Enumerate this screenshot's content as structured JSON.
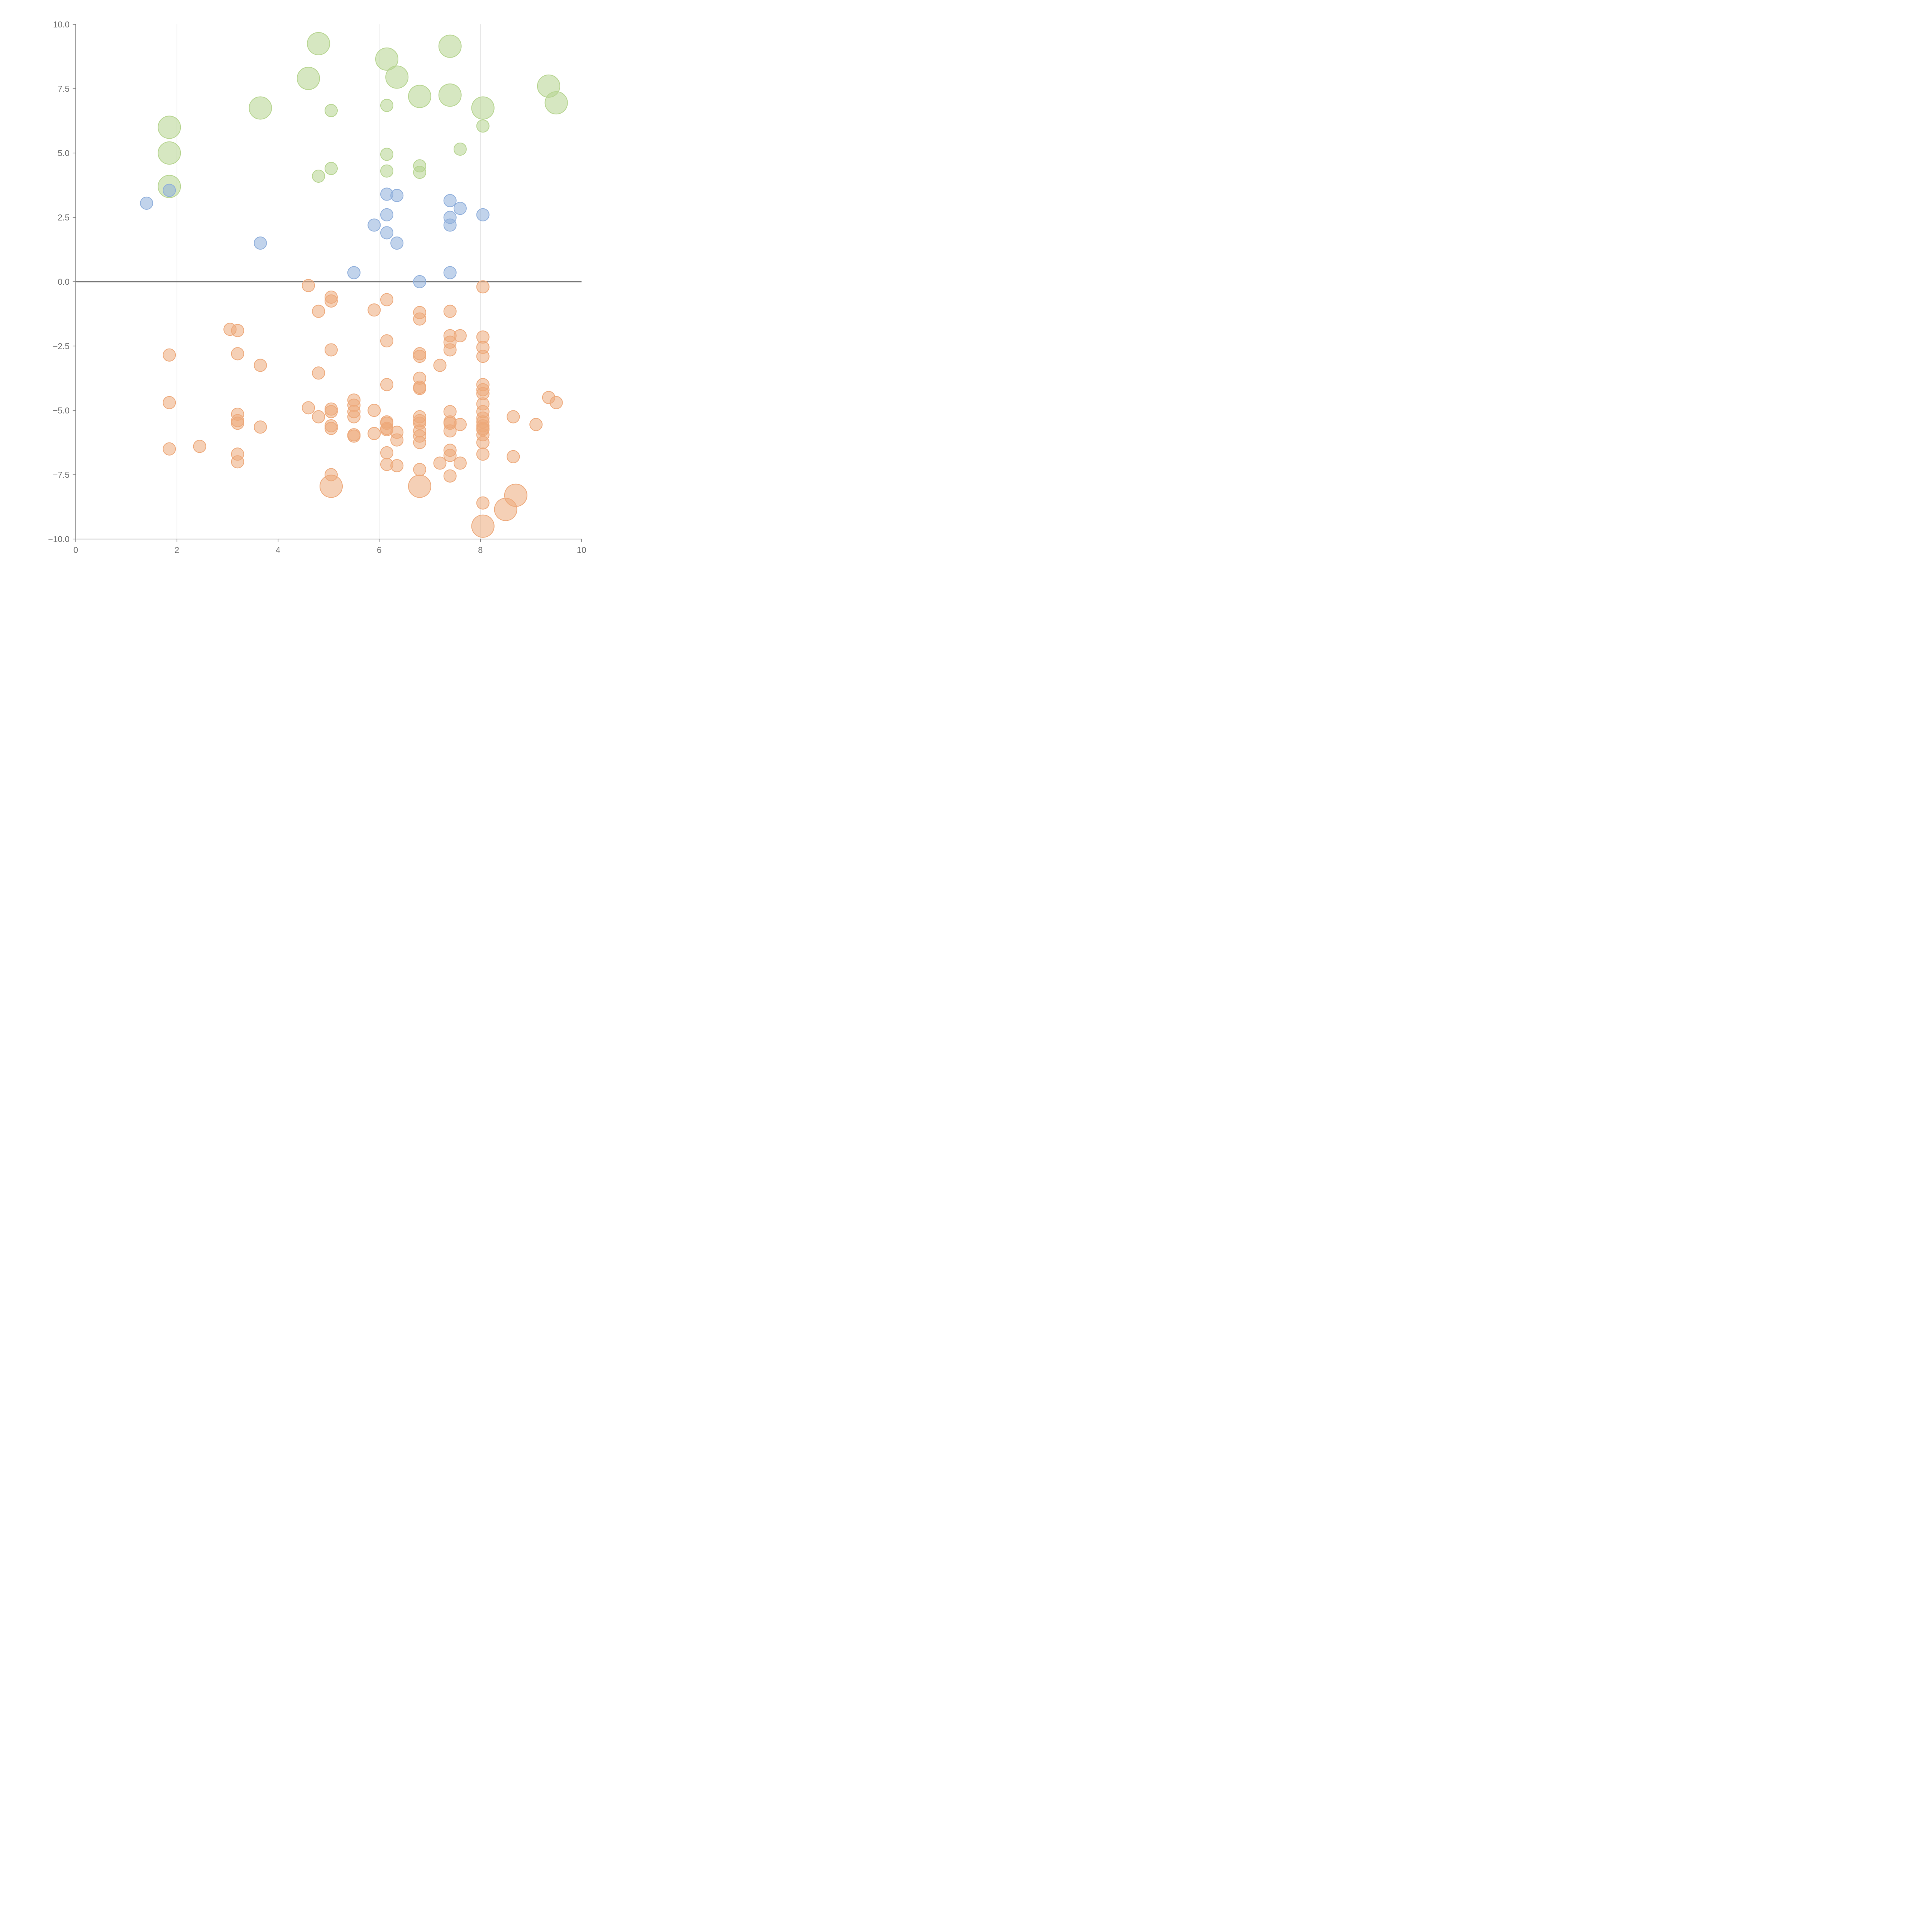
{
  "chart_data": {
    "type": "scatter",
    "title": "",
    "xlabel": "",
    "ylabel": "",
    "xlim": [
      0,
      10
    ],
    "ylim": [
      -10,
      10
    ],
    "grid": "vertical lines at x ticks",
    "legend": "none",
    "x_ticks": [
      "0",
      "2",
      "4",
      "6",
      "8",
      "10"
    ],
    "y_ticks": [
      "10.0",
      "7.5",
      "5.0",
      "2.5",
      "0.0",
      "−2.5",
      "−5.0",
      "−7.5",
      "−10.0"
    ],
    "x_tick_values": [
      0,
      2,
      4,
      6,
      8,
      10
    ],
    "y_tick_values": [
      10,
      7.5,
      5,
      2.5,
      0,
      -2.5,
      -5,
      -7.5,
      -10
    ],
    "zero_line_y": 0,
    "colors": {
      "green": "#b5d48e",
      "blue": "#8eaedb",
      "orange": "#eda97a",
      "axis": "#777777",
      "grid": "#dddddd"
    },
    "series": [
      {
        "color": "#b5d48e",
        "points": [
          {
            "x": 4.8,
            "y": 9.25,
            "s": "l"
          },
          {
            "x": 7.4,
            "y": 9.15,
            "s": "l"
          },
          {
            "x": 6.15,
            "y": 8.65,
            "s": "l"
          },
          {
            "x": 6.35,
            "y": 7.95,
            "s": "l"
          },
          {
            "x": 4.6,
            "y": 7.9,
            "s": "l"
          },
          {
            "x": 9.35,
            "y": 7.6,
            "s": "l"
          },
          {
            "x": 7.4,
            "y": 7.25,
            "s": "l"
          },
          {
            "x": 6.8,
            "y": 7.2,
            "s": "l"
          },
          {
            "x": 9.5,
            "y": 6.95,
            "s": "l"
          },
          {
            "x": 3.65,
            "y": 6.75,
            "s": "l"
          },
          {
            "x": 8.05,
            "y": 6.75,
            "s": "l"
          },
          {
            "x": 1.85,
            "y": 6.0,
            "s": "l"
          },
          {
            "x": 1.85,
            "y": 5.0,
            "s": "l"
          },
          {
            "x": 1.85,
            "y": 3.7,
            "s": "l"
          },
          {
            "x": 6.15,
            "y": 6.85,
            "s": "s"
          },
          {
            "x": 5.05,
            "y": 6.65,
            "s": "s"
          },
          {
            "x": 8.05,
            "y": 6.05,
            "s": "s"
          },
          {
            "x": 7.6,
            "y": 5.15,
            "s": "s"
          },
          {
            "x": 6.15,
            "y": 4.95,
            "s": "s"
          },
          {
            "x": 6.8,
            "y": 4.5,
            "s": "s"
          },
          {
            "x": 5.05,
            "y": 4.4,
            "s": "s"
          },
          {
            "x": 6.15,
            "y": 4.3,
            "s": "s"
          },
          {
            "x": 6.8,
            "y": 4.25,
            "s": "s"
          },
          {
            "x": 4.8,
            "y": 4.1,
            "s": "s"
          }
        ]
      },
      {
        "color": "#8eaedb",
        "points": [
          {
            "x": 1.85,
            "y": 3.55,
            "s": "s"
          },
          {
            "x": 1.4,
            "y": 3.05,
            "s": "s"
          },
          {
            "x": 6.15,
            "y": 3.4,
            "s": "s"
          },
          {
            "x": 6.35,
            "y": 3.35,
            "s": "s"
          },
          {
            "x": 7.4,
            "y": 3.15,
            "s": "s"
          },
          {
            "x": 7.6,
            "y": 2.85,
            "s": "s"
          },
          {
            "x": 6.15,
            "y": 2.6,
            "s": "s"
          },
          {
            "x": 8.05,
            "y": 2.6,
            "s": "s"
          },
          {
            "x": 7.4,
            "y": 2.5,
            "s": "s"
          },
          {
            "x": 7.4,
            "y": 2.2,
            "s": "s"
          },
          {
            "x": 5.9,
            "y": 2.2,
            "s": "s"
          },
          {
            "x": 6.15,
            "y": 1.9,
            "s": "s"
          },
          {
            "x": 6.35,
            "y": 1.5,
            "s": "s"
          },
          {
            "x": 3.65,
            "y": 1.5,
            "s": "s"
          },
          {
            "x": 5.5,
            "y": 0.35,
            "s": "s"
          },
          {
            "x": 7.4,
            "y": 0.35,
            "s": "s"
          },
          {
            "x": 6.8,
            "y": 0.0,
            "s": "s"
          }
        ]
      },
      {
        "color": "#eda97a",
        "points": [
          {
            "x": 4.6,
            "y": -0.15,
            "s": "s"
          },
          {
            "x": 8.05,
            "y": -0.2,
            "s": "s"
          },
          {
            "x": 5.05,
            "y": -0.6,
            "s": "s"
          },
          {
            "x": 5.05,
            "y": -0.75,
            "s": "s"
          },
          {
            "x": 6.15,
            "y": -0.7,
            "s": "s"
          },
          {
            "x": 4.8,
            "y": -1.15,
            "s": "s"
          },
          {
            "x": 5.9,
            "y": -1.1,
            "s": "s"
          },
          {
            "x": 6.8,
            "y": -1.2,
            "s": "s"
          },
          {
            "x": 7.4,
            "y": -1.15,
            "s": "s"
          },
          {
            "x": 6.8,
            "y": -1.45,
            "s": "s"
          },
          {
            "x": 3.05,
            "y": -1.85,
            "s": "s"
          },
          {
            "x": 3.2,
            "y": -1.9,
            "s": "s"
          },
          {
            "x": 7.6,
            "y": -2.1,
            "s": "s"
          },
          {
            "x": 7.4,
            "y": -2.1,
            "s": "s"
          },
          {
            "x": 8.05,
            "y": -2.15,
            "s": "s"
          },
          {
            "x": 6.15,
            "y": -2.3,
            "s": "s"
          },
          {
            "x": 7.4,
            "y": -2.35,
            "s": "s"
          },
          {
            "x": 8.05,
            "y": -2.55,
            "s": "s"
          },
          {
            "x": 5.05,
            "y": -2.65,
            "s": "s"
          },
          {
            "x": 7.4,
            "y": -2.65,
            "s": "s"
          },
          {
            "x": 1.85,
            "y": -2.85,
            "s": "s"
          },
          {
            "x": 3.2,
            "y": -2.8,
            "s": "s"
          },
          {
            "x": 6.8,
            "y": -2.8,
            "s": "s"
          },
          {
            "x": 6.8,
            "y": -2.9,
            "s": "s"
          },
          {
            "x": 8.05,
            "y": -2.9,
            "s": "s"
          },
          {
            "x": 3.65,
            "y": -3.25,
            "s": "s"
          },
          {
            "x": 7.2,
            "y": -3.25,
            "s": "s"
          },
          {
            "x": 4.8,
            "y": -3.55,
            "s": "s"
          },
          {
            "x": 6.8,
            "y": -3.75,
            "s": "s"
          },
          {
            "x": 8.05,
            "y": -4.0,
            "s": "s"
          },
          {
            "x": 6.15,
            "y": -4.0,
            "s": "s"
          },
          {
            "x": 6.8,
            "y": -4.1,
            "s": "s"
          },
          {
            "x": 6.8,
            "y": -4.15,
            "s": "s"
          },
          {
            "x": 8.05,
            "y": -4.2,
            "s": "s"
          },
          {
            "x": 8.05,
            "y": -4.35,
            "s": "s"
          },
          {
            "x": 9.35,
            "y": -4.5,
            "s": "s"
          },
          {
            "x": 5.5,
            "y": -4.6,
            "s": "s"
          },
          {
            "x": 1.85,
            "y": -4.7,
            "s": "s"
          },
          {
            "x": 9.5,
            "y": -4.7,
            "s": "s"
          },
          {
            "x": 8.05,
            "y": -4.75,
            "s": "s"
          },
          {
            "x": 5.5,
            "y": -4.8,
            "s": "s"
          },
          {
            "x": 4.6,
            "y": -4.9,
            "s": "s"
          },
          {
            "x": 5.05,
            "y": -4.95,
            "s": "s"
          },
          {
            "x": 5.05,
            "y": -5.05,
            "s": "s"
          },
          {
            "x": 5.9,
            "y": -5.0,
            "s": "s"
          },
          {
            "x": 5.5,
            "y": -5.05,
            "s": "s"
          },
          {
            "x": 7.4,
            "y": -5.05,
            "s": "s"
          },
          {
            "x": 8.05,
            "y": -5.05,
            "s": "s"
          },
          {
            "x": 3.2,
            "y": -5.15,
            "s": "s"
          },
          {
            "x": 4.8,
            "y": -5.25,
            "s": "s"
          },
          {
            "x": 6.8,
            "y": -5.25,
            "s": "s"
          },
          {
            "x": 8.65,
            "y": -5.25,
            "s": "s"
          },
          {
            "x": 5.5,
            "y": -5.25,
            "s": "s"
          },
          {
            "x": 8.05,
            "y": -5.3,
            "s": "s"
          },
          {
            "x": 3.2,
            "y": -5.4,
            "s": "s"
          },
          {
            "x": 6.8,
            "y": -5.4,
            "s": "s"
          },
          {
            "x": 6.15,
            "y": -5.45,
            "s": "s"
          },
          {
            "x": 7.4,
            "y": -5.45,
            "s": "s"
          },
          {
            "x": 8.05,
            "y": -5.45,
            "s": "s"
          },
          {
            "x": 3.2,
            "y": -5.5,
            "s": "s"
          },
          {
            "x": 6.8,
            "y": -5.5,
            "s": "s"
          },
          {
            "x": 7.4,
            "y": -5.5,
            "s": "s"
          },
          {
            "x": 6.15,
            "y": -5.5,
            "s": "s"
          },
          {
            "x": 9.1,
            "y": -5.55,
            "s": "s"
          },
          {
            "x": 7.6,
            "y": -5.55,
            "s": "s"
          },
          {
            "x": 8.05,
            "y": -5.6,
            "s": "s"
          },
          {
            "x": 5.05,
            "y": -5.6,
            "s": "s"
          },
          {
            "x": 3.65,
            "y": -5.65,
            "s": "s"
          },
          {
            "x": 5.05,
            "y": -5.7,
            "s": "s"
          },
          {
            "x": 6.15,
            "y": -5.7,
            "s": "s"
          },
          {
            "x": 8.05,
            "y": -5.7,
            "s": "s"
          },
          {
            "x": 6.15,
            "y": -5.75,
            "s": "s"
          },
          {
            "x": 8.05,
            "y": -5.75,
            "s": "s"
          },
          {
            "x": 7.4,
            "y": -5.8,
            "s": "s"
          },
          {
            "x": 6.8,
            "y": -5.8,
            "s": "s"
          },
          {
            "x": 6.35,
            "y": -5.85,
            "s": "s"
          },
          {
            "x": 5.9,
            "y": -5.9,
            "s": "s"
          },
          {
            "x": 8.05,
            "y": -5.95,
            "s": "s"
          },
          {
            "x": 5.5,
            "y": -5.95,
            "s": "s"
          },
          {
            "x": 5.5,
            "y": -6.0,
            "s": "s"
          },
          {
            "x": 6.8,
            "y": -6.0,
            "s": "s"
          },
          {
            "x": 6.35,
            "y": -6.15,
            "s": "s"
          },
          {
            "x": 6.8,
            "y": -6.25,
            "s": "s"
          },
          {
            "x": 8.05,
            "y": -6.25,
            "s": "s"
          },
          {
            "x": 2.45,
            "y": -6.4,
            "s": "s"
          },
          {
            "x": 1.85,
            "y": -6.5,
            "s": "s"
          },
          {
            "x": 7.4,
            "y": -6.55,
            "s": "s"
          },
          {
            "x": 6.15,
            "y": -6.65,
            "s": "s"
          },
          {
            "x": 3.2,
            "y": -6.7,
            "s": "s"
          },
          {
            "x": 8.05,
            "y": -6.7,
            "s": "s"
          },
          {
            "x": 7.4,
            "y": -6.75,
            "s": "s"
          },
          {
            "x": 8.65,
            "y": -6.8,
            "s": "s"
          },
          {
            "x": 3.2,
            "y": -7.0,
            "s": "s"
          },
          {
            "x": 7.2,
            "y": -7.05,
            "s": "s"
          },
          {
            "x": 7.6,
            "y": -7.05,
            "s": "s"
          },
          {
            "x": 6.15,
            "y": -7.1,
            "s": "s"
          },
          {
            "x": 6.35,
            "y": -7.15,
            "s": "s"
          },
          {
            "x": 6.8,
            "y": -7.3,
            "s": "s"
          },
          {
            "x": 5.05,
            "y": -7.5,
            "s": "s"
          },
          {
            "x": 7.4,
            "y": -7.55,
            "s": "s"
          },
          {
            "x": 8.05,
            "y": -8.6,
            "s": "s"
          },
          {
            "x": 5.05,
            "y": -7.95,
            "s": "l"
          },
          {
            "x": 6.8,
            "y": -7.95,
            "s": "l"
          },
          {
            "x": 8.7,
            "y": -8.3,
            "s": "l"
          },
          {
            "x": 8.5,
            "y": -8.85,
            "s": "l"
          },
          {
            "x": 8.05,
            "y": -9.5,
            "s": "l"
          }
        ]
      }
    ]
  }
}
